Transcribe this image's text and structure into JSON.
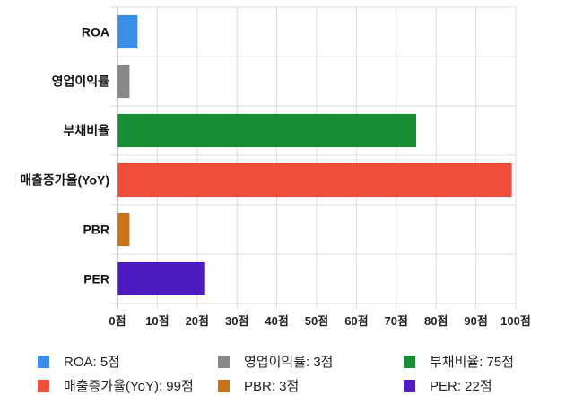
{
  "chart_data": {
    "type": "bar",
    "orientation": "horizontal",
    "categories": [
      "ROA",
      "영업이익률",
      "부채비율",
      "매출증가율(YoY)",
      "PBR",
      "PER"
    ],
    "values": [
      5,
      3,
      75,
      99,
      3,
      22
    ],
    "colors": [
      "#3a8ee6",
      "#888888",
      "#188f35",
      "#ee4e3a",
      "#cc7317",
      "#4e1bc2"
    ],
    "xlim": [
      0,
      100
    ],
    "xticks": [
      0,
      10,
      20,
      30,
      40,
      50,
      60,
      70,
      80,
      90,
      100
    ],
    "xtick_labels": [
      "0점",
      "10점",
      "20점",
      "30점",
      "40점",
      "50점",
      "60점",
      "70점",
      "80점",
      "90점",
      "100점"
    ],
    "grid": true,
    "legend_position": "bottom",
    "legend": [
      "ROA: 5점",
      "영업이익률: 3점",
      "부채비율: 75점",
      "매출증가율(YoY): 99점",
      "PBR: 3점",
      "PER: 22점"
    ]
  }
}
